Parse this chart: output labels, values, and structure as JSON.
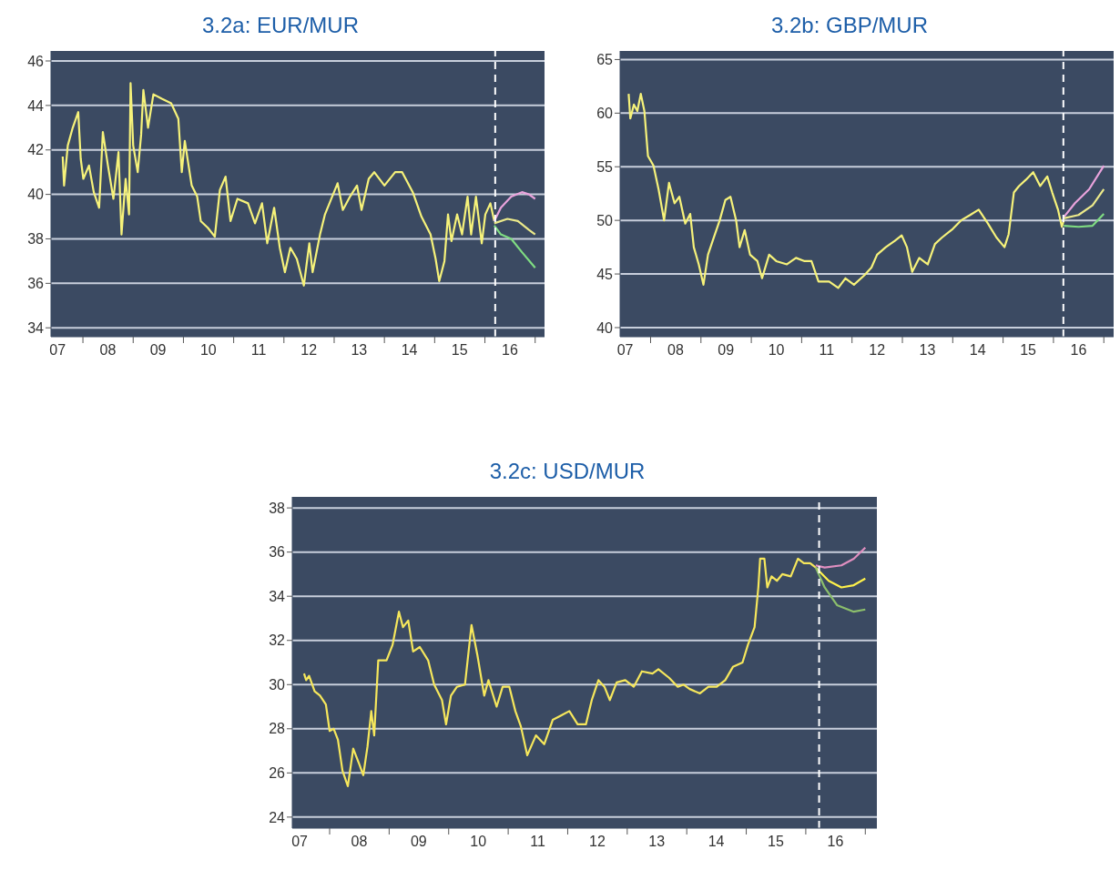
{
  "chart_data": [
    {
      "type": "line",
      "title": "3.2a: EUR/MUR",
      "xlim": [
        "2007-05-14",
        "2017-03-10"
      ],
      "xticks": [
        {
          "value": "2007-07-01",
          "label": "07"
        },
        {
          "value": "2008-01-01",
          "label": null
        },
        {
          "value": "2008-07-01",
          "label": "08"
        },
        {
          "value": "2009-01-01",
          "label": null
        },
        {
          "value": "2009-07-01",
          "label": "09"
        },
        {
          "value": "2010-01-01",
          "label": null
        },
        {
          "value": "2010-07-01",
          "label": "10"
        },
        {
          "value": "2011-01-01",
          "label": null
        },
        {
          "value": "2011-07-01",
          "label": "11"
        },
        {
          "value": "2012-01-01",
          "label": null
        },
        {
          "value": "2012-07-01",
          "label": "12"
        },
        {
          "value": "2013-01-01",
          "label": null
        },
        {
          "value": "2013-07-01",
          "label": "13"
        },
        {
          "value": "2014-01-01",
          "label": null
        },
        {
          "value": "2014-07-01",
          "label": "14"
        },
        {
          "value": "2015-01-01",
          "label": null
        },
        {
          "value": "2015-07-01",
          "label": "15"
        },
        {
          "value": "2016-01-01",
          "label": null
        },
        {
          "value": "2016-07-01",
          "label": "16"
        },
        {
          "value": "2017-01-01",
          "label": null
        }
      ],
      "ylim": [
        33.6,
        46.45
      ],
      "yticks": [
        34,
        36,
        38,
        40,
        42,
        44,
        46
      ],
      "grid": "y",
      "ref_lines": [
        {
          "axis": "x",
          "value": "2016-03-16",
          "color": "#ffffff",
          "line_style": "dashed"
        }
      ],
      "series": [
        {
          "color": "#f6f27a",
          "x": [
            "2007-08-07",
            "2007-08-17",
            "2007-09-13",
            "2007-10-19",
            "2007-11-28",
            "2007-12-16",
            "2008-01-04",
            "2008-02-14",
            "2008-03-20",
            "2008-04-28",
            "2008-05-25",
            "2008-07-01",
            "2008-08-10",
            "2008-09-16",
            "2008-10-08",
            "2008-11-07",
            "2008-12-02",
            "2008-12-13",
            "2009-01-01",
            "2009-02-03",
            "2009-02-28",
            "2009-03-16",
            "2009-04-19",
            "2009-05-28",
            "2009-07-28",
            "2009-10-04",
            "2009-11-25",
            "2009-12-20",
            "2010-01-11",
            "2010-03-02",
            "2010-04-11",
            "2010-05-07",
            "2010-06-27",
            "2010-08-17",
            "2010-09-23",
            "2010-11-03",
            "2010-12-09",
            "2011-01-28",
            "2011-04-15",
            "2011-06-05",
            "2011-07-26",
            "2011-09-02",
            "2011-10-22",
            "2011-12-02",
            "2012-01-08",
            "2012-02-17",
            "2012-04-04",
            "2012-05-25",
            "2012-07-04",
            "2012-07-28",
            "2012-09-20",
            "2012-10-26",
            "2013-01-26",
            "2013-03-05",
            "2013-04-26",
            "2013-06-16",
            "2013-07-19",
            "2013-09-09",
            "2013-10-19",
            "2014-01-01",
            "2014-03-20",
            "2014-05-10",
            "2014-07-26",
            "2014-09-27",
            "2014-12-02",
            "2015-01-08",
            "2015-02-03",
            "2015-03-13",
            "2015-04-08",
            "2015-05-03",
            "2015-06-13",
            "2015-07-19",
            "2015-08-28",
            "2015-09-23",
            "2015-10-28",
            "2015-12-09",
            "2016-01-04",
            "2016-02-10",
            "2016-03-09"
          ],
          "values": [
            41.7,
            40.4,
            42.2,
            43.0,
            43.7,
            41.6,
            40.7,
            41.3,
            40.1,
            39.4,
            42.8,
            41.3,
            39.8,
            41.9,
            38.2,
            40.7,
            39.1,
            45.0,
            42.2,
            41.0,
            42.7,
            44.7,
            43.0,
            44.5,
            44.3,
            44.1,
            43.4,
            41.0,
            42.4,
            40.4,
            39.9,
            38.8,
            38.5,
            38.1,
            40.2,
            40.8,
            38.8,
            39.8,
            39.6,
            38.7,
            39.6,
            37.8,
            39.4,
            37.6,
            36.5,
            37.6,
            37.1,
            35.9,
            37.8,
            36.5,
            38.2,
            39.1,
            40.5,
            39.3,
            39.9,
            40.4,
            39.3,
            40.7,
            41.0,
            40.4,
            41.0,
            41.0,
            40.1,
            39.0,
            38.2,
            37.1,
            36.1,
            37.0,
            39.1,
            37.9,
            39.1,
            38.2,
            39.9,
            38.2,
            39.9,
            37.8,
            39.1,
            39.6,
            38.8
          ]
        },
        {
          "color": "#e9a3dc",
          "x": [
            "2016-03-09",
            "2016-04-26",
            "2016-07-11",
            "2016-09-27",
            "2016-11-17",
            "2017-01-01"
          ],
          "values": [
            38.8,
            39.4,
            39.9,
            40.1,
            40.0,
            39.8
          ]
        },
        {
          "color": "#ecea8a",
          "x": [
            "2016-03-09",
            "2016-06-13",
            "2016-08-28",
            "2016-11-17",
            "2017-01-01"
          ],
          "values": [
            38.7,
            38.9,
            38.8,
            38.4,
            38.2
          ]
        },
        {
          "color": "#7fdc82",
          "x": [
            "2016-03-09",
            "2016-04-26",
            "2016-07-11",
            "2016-09-27",
            "2017-01-01"
          ],
          "values": [
            38.6,
            38.2,
            38.0,
            37.4,
            36.7
          ]
        }
      ]
    },
    {
      "type": "line",
      "title": "3.2b: GBP/MUR",
      "xlim": [
        "2007-05-25",
        "2017-03-13"
      ],
      "xticks": [
        {
          "value": "2007-07-01",
          "label": "07"
        },
        {
          "value": "2008-01-01",
          "label": null
        },
        {
          "value": "2008-07-01",
          "label": "08"
        },
        {
          "value": "2009-01-01",
          "label": null
        },
        {
          "value": "2009-07-01",
          "label": "09"
        },
        {
          "value": "2010-01-01",
          "label": null
        },
        {
          "value": "2010-07-01",
          "label": "10"
        },
        {
          "value": "2011-01-01",
          "label": null
        },
        {
          "value": "2011-07-01",
          "label": "11"
        },
        {
          "value": "2012-01-01",
          "label": null
        },
        {
          "value": "2012-07-01",
          "label": "12"
        },
        {
          "value": "2013-01-01",
          "label": null
        },
        {
          "value": "2013-07-01",
          "label": "13"
        },
        {
          "value": "2014-01-01",
          "label": null
        },
        {
          "value": "2014-07-01",
          "label": "14"
        },
        {
          "value": "2015-01-01",
          "label": null
        },
        {
          "value": "2015-07-01",
          "label": "15"
        },
        {
          "value": "2016-01-01",
          "label": null
        },
        {
          "value": "2016-07-01",
          "label": "16"
        },
        {
          "value": "2017-01-01",
          "label": null
        }
      ],
      "ylim": [
        39.15,
        65.8
      ],
      "yticks": [
        40,
        45,
        50,
        55,
        60,
        65
      ],
      "grid": "y",
      "ref_lines": [
        {
          "axis": "x",
          "value": "2016-03-13",
          "color": "#ffffff",
          "line_style": "dashed"
        }
      ],
      "series": [
        {
          "color": "#f6f27a",
          "x": [
            "2007-07-26",
            "2007-08-07",
            "2007-09-02",
            "2007-09-27",
            "2007-10-22",
            "2007-11-17",
            "2007-12-13",
            "2008-01-22",
            "2008-02-28",
            "2008-04-08",
            "2008-05-14",
            "2008-06-23",
            "2008-07-28",
            "2008-09-09",
            "2008-10-15",
            "2008-11-10",
            "2008-12-16",
            "2009-01-19",
            "2009-02-21",
            "2009-03-27",
            "2009-05-17",
            "2009-06-27",
            "2009-08-03",
            "2009-09-13",
            "2009-10-08",
            "2009-11-14",
            "2009-12-23",
            "2010-02-14",
            "2010-03-20",
            "2010-05-10",
            "2010-07-01",
            "2010-09-16",
            "2010-11-21",
            "2011-01-22",
            "2011-03-13",
            "2011-05-03",
            "2011-07-19",
            "2011-09-23",
            "2011-11-14",
            "2012-01-15",
            "2012-04-01",
            "2012-05-21",
            "2012-07-01",
            "2012-09-02",
            "2012-11-07",
            "2012-12-27",
            "2013-02-03",
            "2013-03-13",
            "2013-05-03",
            "2013-07-04",
            "2013-08-25",
            "2013-10-15",
            "2014-01-01",
            "2014-03-02",
            "2014-05-07",
            "2014-07-08",
            "2014-09-13",
            "2014-11-14",
            "2015-01-11",
            "2015-02-10",
            "2015-03-20",
            "2015-04-26",
            "2015-06-16",
            "2015-08-07",
            "2015-09-27",
            "2015-11-17",
            "2015-12-23",
            "2016-02-03",
            "2016-03-02",
            "2016-03-16"
          ],
          "values": [
            61.8,
            59.5,
            60.8,
            60.2,
            61.8,
            60.2,
            56.0,
            55.1,
            52.9,
            50.0,
            53.5,
            51.6,
            52.2,
            49.7,
            50.6,
            47.5,
            45.9,
            44.0,
            46.8,
            48.1,
            50.0,
            51.9,
            52.2,
            50.0,
            47.5,
            49.1,
            46.8,
            46.2,
            44.6,
            46.8,
            46.2,
            45.9,
            46.5,
            46.2,
            46.2,
            44.3,
            44.3,
            43.7,
            44.6,
            44.0,
            44.9,
            45.6,
            46.8,
            47.5,
            48.1,
            48.6,
            47.5,
            45.2,
            46.5,
            45.9,
            47.8,
            48.4,
            49.2,
            50.0,
            50.5,
            51.0,
            49.7,
            48.4,
            47.5,
            48.7,
            52.6,
            53.2,
            53.8,
            54.5,
            53.2,
            54.1,
            52.6,
            51.0,
            49.4,
            50.0
          ]
        },
        {
          "color": "#e9a3dc",
          "x": [
            "2016-03-16",
            "2016-06-05",
            "2016-09-16",
            "2017-01-01"
          ],
          "values": [
            50.3,
            51.6,
            52.9,
            55.1
          ]
        },
        {
          "color": "#ecea8a",
          "x": [
            "2016-03-16",
            "2016-07-01",
            "2016-10-11",
            "2017-01-01"
          ],
          "values": [
            50.2,
            50.5,
            51.4,
            52.9
          ]
        },
        {
          "color": "#7fdc82",
          "x": [
            "2016-03-16",
            "2016-07-01",
            "2016-10-11",
            "2017-01-01"
          ],
          "values": [
            49.5,
            49.4,
            49.5,
            50.6
          ]
        }
      ]
    },
    {
      "type": "line",
      "title": "3.2c: USD/MUR",
      "xlim": [
        "2007-05-17",
        "2017-03-13"
      ],
      "xticks": [
        {
          "value": "2007-07-01",
          "label": "07"
        },
        {
          "value": "2008-01-01",
          "label": null
        },
        {
          "value": "2008-07-01",
          "label": "08"
        },
        {
          "value": "2009-01-01",
          "label": null
        },
        {
          "value": "2009-07-01",
          "label": "09"
        },
        {
          "value": "2010-01-01",
          "label": null
        },
        {
          "value": "2010-07-01",
          "label": "10"
        },
        {
          "value": "2011-01-01",
          "label": null
        },
        {
          "value": "2011-07-01",
          "label": "11"
        },
        {
          "value": "2012-01-01",
          "label": null
        },
        {
          "value": "2012-07-01",
          "label": "12"
        },
        {
          "value": "2013-01-01",
          "label": null
        },
        {
          "value": "2013-07-01",
          "label": "13"
        },
        {
          "value": "2014-01-01",
          "label": null
        },
        {
          "value": "2014-07-01",
          "label": "14"
        },
        {
          "value": "2015-01-01",
          "label": null
        },
        {
          "value": "2015-07-01",
          "label": "15"
        },
        {
          "value": "2016-01-01",
          "label": null
        },
        {
          "value": "2016-07-01",
          "label": "16"
        },
        {
          "value": "2017-01-01",
          "label": null
        }
      ],
      "ylim": [
        23.5,
        38.5
      ],
      "yticks": [
        24,
        26,
        28,
        30,
        32,
        34,
        36,
        38
      ],
      "grid": "y",
      "ref_lines": [
        {
          "axis": "x",
          "value": "2016-03-23",
          "color": "#ffffff",
          "line_style": "dashed"
        }
      ],
      "series": [
        {
          "color": "#f6e75c",
          "x": [
            "2007-07-28",
            "2007-08-10",
            "2007-08-28",
            "2007-10-01",
            "2007-11-03",
            "2007-12-09",
            "2008-01-01",
            "2008-01-26",
            "2008-02-21",
            "2008-03-20",
            "2008-04-22",
            "2008-05-25",
            "2008-07-01",
            "2008-07-26",
            "2008-08-21",
            "2008-09-13",
            "2008-10-01",
            "2008-10-26",
            "2008-12-16",
            "2009-01-22",
            "2009-03-02",
            "2009-03-27",
            "2009-04-28",
            "2009-05-28",
            "2009-07-08",
            "2009-08-28",
            "2009-10-04",
            "2009-11-21",
            "2009-12-16",
            "2010-01-15",
            "2010-02-21",
            "2010-04-11",
            "2010-05-21",
            "2010-06-27",
            "2010-08-07",
            "2010-09-02",
            "2010-10-22",
            "2010-11-28",
            "2011-01-08",
            "2011-02-14",
            "2011-03-20",
            "2011-04-28",
            "2011-06-20",
            "2011-08-10",
            "2011-10-01",
            "2011-11-21",
            "2012-01-11",
            "2012-03-02",
            "2012-04-22",
            "2012-05-28",
            "2012-07-08",
            "2012-08-14",
            "2012-09-16",
            "2012-10-28",
            "2012-12-20",
            "2013-02-10",
            "2013-04-01",
            "2013-06-05",
            "2013-07-11",
            "2013-09-16",
            "2013-11-07",
            "2013-12-13",
            "2014-01-19",
            "2014-03-23",
            "2014-05-14",
            "2014-07-04",
            "2014-08-25",
            "2014-10-11",
            "2014-12-09",
            "2015-01-11",
            "2015-02-21",
            "2015-03-16",
            "2015-03-27",
            "2015-04-22",
            "2015-05-10",
            "2015-06-05",
            "2015-07-08",
            "2015-08-10",
            "2015-10-01",
            "2015-11-14",
            "2015-12-20",
            "2016-01-28",
            "2016-03-02"
          ],
          "values": [
            30.5,
            30.2,
            30.4,
            29.7,
            29.5,
            29.1,
            27.9,
            28.0,
            27.5,
            26.1,
            25.4,
            27.1,
            26.4,
            25.9,
            27.2,
            28.8,
            27.7,
            31.1,
            31.1,
            31.8,
            33.3,
            32.6,
            32.9,
            31.5,
            31.7,
            31.1,
            30.0,
            29.3,
            28.2,
            29.5,
            29.9,
            30.0,
            32.7,
            31.3,
            29.5,
            30.2,
            29.0,
            29.9,
            29.9,
            28.8,
            28.1,
            26.8,
            27.7,
            27.3,
            28.4,
            28.6,
            28.8,
            28.2,
            28.2,
            29.3,
            30.2,
            29.9,
            29.3,
            30.1,
            30.2,
            29.9,
            30.6,
            30.5,
            30.7,
            30.3,
            29.9,
            30.0,
            29.8,
            29.6,
            29.9,
            29.9,
            30.2,
            30.8,
            31.0,
            31.8,
            32.6,
            34.4,
            35.7,
            35.7,
            34.4,
            34.9,
            34.7,
            35.0,
            34.9,
            35.7,
            35.5,
            35.5,
            35.3
          ]
        },
        {
          "color": "#e08fc0",
          "x": [
            "2016-03-02",
            "2016-04-26",
            "2016-08-07",
            "2016-10-22",
            "2017-01-01"
          ],
          "values": [
            35.4,
            35.3,
            35.4,
            35.7,
            36.2
          ]
        },
        {
          "color": "#fff24a",
          "x": [
            "2016-03-02",
            "2016-05-21",
            "2016-08-07",
            "2016-10-22",
            "2017-01-01"
          ],
          "values": [
            35.3,
            34.7,
            34.4,
            34.5,
            34.8
          ]
        },
        {
          "color": "#8cbf6c",
          "x": [
            "2016-03-02",
            "2016-04-26",
            "2016-07-11",
            "2016-10-22",
            "2017-01-01"
          ],
          "values": [
            35.3,
            34.4,
            33.6,
            33.3,
            33.4
          ]
        }
      ]
    }
  ]
}
